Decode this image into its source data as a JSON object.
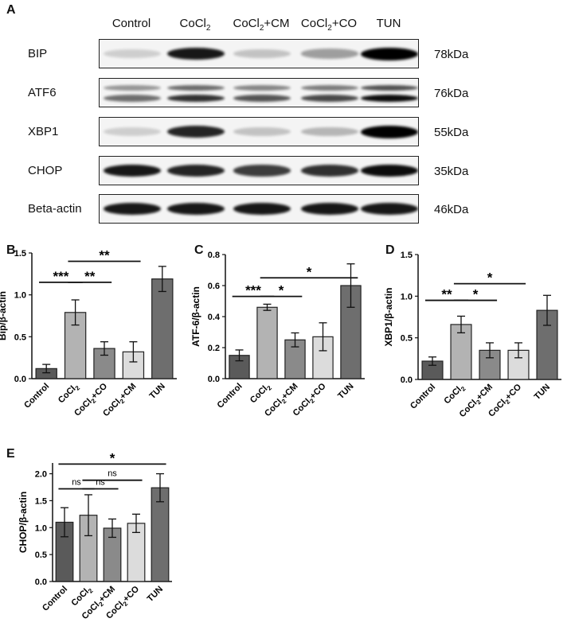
{
  "panels": {
    "A": "A",
    "B": "B",
    "C": "C",
    "D": "D",
    "E": "E"
  },
  "blot": {
    "lanes": [
      {
        "main": "Control",
        "sub": "",
        "tail": ""
      },
      {
        "main": "CoCl",
        "sub": "2",
        "tail": ""
      },
      {
        "main": "CoCl",
        "sub": "2",
        "tail": "+CM"
      },
      {
        "main": "CoCl",
        "sub": "2",
        "tail": "+CO"
      },
      {
        "main": "TUN",
        "sub": "",
        "tail": ""
      }
    ],
    "rows": [
      {
        "label": "BIP",
        "kda": "78kDa",
        "intensity": [
          0.15,
          0.9,
          0.2,
          0.35,
          1.0
        ],
        "double": false
      },
      {
        "label": "ATF6",
        "kda": "76kDa",
        "intensity": [
          0.55,
          0.8,
          0.65,
          0.7,
          0.95
        ],
        "double": true
      },
      {
        "label": "XBP1",
        "kda": "55kDa",
        "intensity": [
          0.15,
          0.85,
          0.2,
          0.25,
          1.0
        ],
        "double": false
      },
      {
        "label": "CHOP",
        "kda": "35kDa",
        "intensity": [
          0.9,
          0.85,
          0.75,
          0.8,
          0.95
        ],
        "double": false
      },
      {
        "label": "Beta-actin",
        "kda": "46kDa",
        "intensity": [
          0.9,
          0.9,
          0.9,
          0.9,
          0.9
        ],
        "double": false
      }
    ]
  },
  "colors": [
    "#5a5a5a",
    "#b3b3b3",
    "#8a8a8a",
    "#dcdcdc",
    "#6e6e6e"
  ],
  "chart_data": [
    {
      "id": "B",
      "type": "bar",
      "categories": [
        "Control",
        "CoCl2",
        "CoCl2+CO",
        "CoCl2+CM",
        "TUN"
      ],
      "values": [
        0.12,
        0.79,
        0.36,
        0.32,
        1.19
      ],
      "errors": [
        0.05,
        0.15,
        0.08,
        0.12,
        0.15
      ],
      "ylabel": "Bip/β-actin",
      "ylim": [
        0,
        1.5
      ],
      "yticks": [
        "0.0",
        "0.5",
        "1.0",
        "1.5"
      ],
      "sig": [
        {
          "from": 0,
          "to": 1,
          "label": "***",
          "level": 1.15
        },
        {
          "from": 1,
          "to": 2,
          "label": "**",
          "level": 1.15
        },
        {
          "from": 1,
          "to": 3,
          "label": "**",
          "level": 1.4
        }
      ]
    },
    {
      "id": "C",
      "type": "bar",
      "categories": [
        "Control",
        "CoCl2",
        "CoCl2+CM",
        "CoCl2+CO",
        "TUN"
      ],
      "values": [
        0.15,
        0.46,
        0.25,
        0.27,
        0.6
      ],
      "errors": [
        0.035,
        0.02,
        0.045,
        0.09,
        0.14
      ],
      "ylabel": "ATF-6/β-actin",
      "ylim": [
        0,
        0.8
      ],
      "yticks": [
        "0.0",
        "0.2",
        "0.4",
        "0.6",
        "0.8"
      ],
      "sig": [
        {
          "from": 0,
          "to": 1,
          "label": "***",
          "level": 0.53
        },
        {
          "from": 1,
          "to": 2,
          "label": "*",
          "level": 0.53
        },
        {
          "from": 1,
          "to": 4,
          "label": "*",
          "level": 0.65
        }
      ]
    },
    {
      "id": "D",
      "type": "bar",
      "categories": [
        "Control",
        "CoCl2",
        "CoCl2+CM",
        "CoCl2+CO",
        "TUN"
      ],
      "values": [
        0.22,
        0.66,
        0.35,
        0.35,
        0.83
      ],
      "errors": [
        0.05,
        0.1,
        0.09,
        0.09,
        0.18
      ],
      "ylabel": "XBP1/β-actin",
      "ylim": [
        0,
        1.5
      ],
      "yticks": [
        "0.0",
        "0.5",
        "1.0",
        "1.5"
      ],
      "sig": [
        {
          "from": 0,
          "to": 1,
          "label": "**",
          "level": 0.95
        },
        {
          "from": 1,
          "to": 2,
          "label": "*",
          "level": 0.95
        },
        {
          "from": 1,
          "to": 3,
          "label": "*",
          "level": 1.15
        }
      ]
    },
    {
      "id": "E",
      "type": "bar",
      "categories": [
        "Control",
        "CoCl2",
        "CoCl2+CM",
        "CoCl2+CO",
        "TUN"
      ],
      "values": [
        1.1,
        1.23,
        0.99,
        1.08,
        1.74
      ],
      "errors": [
        0.27,
        0.38,
        0.17,
        0.17,
        0.26
      ],
      "ylabel": "CHOP/β-actin",
      "ylim": [
        0,
        2.2
      ],
      "yticks": [
        "0.0",
        "0.5",
        "1.0",
        "1.5",
        "2.0"
      ],
      "sig": [
        {
          "from": 0,
          "to": 1,
          "label": "ns",
          "level": 1.72
        },
        {
          "from": 1,
          "to": 2,
          "label": "ns",
          "level": 1.72
        },
        {
          "from": 1,
          "to": 3,
          "label": "ns",
          "level": 1.88
        },
        {
          "from": 0,
          "to": 4,
          "label": "*",
          "level": 2.18
        }
      ]
    }
  ]
}
